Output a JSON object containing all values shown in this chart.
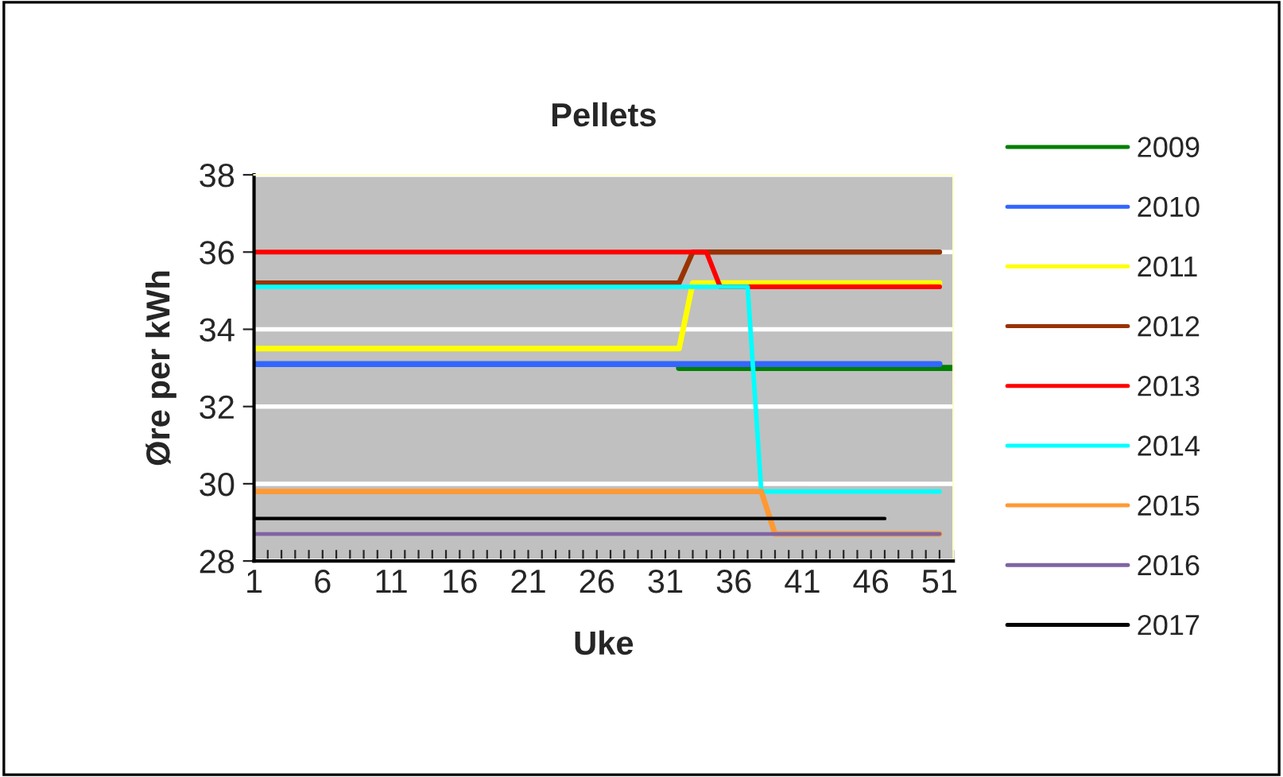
{
  "chart_data": {
    "type": "line",
    "title": "Pellets",
    "xlabel": "Uke",
    "ylabel": "Øre per kWh",
    "xlim": [
      1,
      52
    ],
    "xticks": [
      1,
      {
        "value": 2,
        "label": null
      },
      {
        "value": 3,
        "label": null
      },
      {
        "value": 4,
        "label": null
      },
      {
        "value": 5,
        "label": null
      },
      6,
      {
        "value": 7,
        "label": null
      },
      {
        "value": 8,
        "label": null
      },
      {
        "value": 9,
        "label": null
      },
      {
        "value": 10,
        "label": null
      },
      11,
      {
        "value": 12,
        "label": null
      },
      {
        "value": 13,
        "label": null
      },
      {
        "value": 14,
        "label": null
      },
      {
        "value": 15,
        "label": null
      },
      16,
      {
        "value": 17,
        "label": null
      },
      {
        "value": 18,
        "label": null
      },
      {
        "value": 19,
        "label": null
      },
      {
        "value": 20,
        "label": null
      },
      21,
      {
        "value": 22,
        "label": null
      },
      {
        "value": 23,
        "label": null
      },
      {
        "value": 24,
        "label": null
      },
      {
        "value": 25,
        "label": null
      },
      26,
      {
        "value": 27,
        "label": null
      },
      {
        "value": 28,
        "label": null
      },
      {
        "value": 29,
        "label": null
      },
      {
        "value": 30,
        "label": null
      },
      31,
      {
        "value": 32,
        "label": null
      },
      {
        "value": 33,
        "label": null
      },
      {
        "value": 34,
        "label": null
      },
      {
        "value": 35,
        "label": null
      },
      36,
      {
        "value": 37,
        "label": null
      },
      {
        "value": 38,
        "label": null
      },
      {
        "value": 39,
        "label": null
      },
      {
        "value": 40,
        "label": null
      },
      41,
      {
        "value": 42,
        "label": null
      },
      {
        "value": 43,
        "label": null
      },
      {
        "value": 44,
        "label": null
      },
      {
        "value": 45,
        "label": null
      },
      46,
      {
        "value": 47,
        "label": null
      },
      {
        "value": 48,
        "label": null
      },
      {
        "value": 49,
        "label": null
      },
      {
        "value": 50,
        "label": null
      },
      51,
      {
        "value": 52,
        "label": null
      }
    ],
    "ylim": [
      28,
      38
    ],
    "yticks": [
      28,
      30,
      32,
      34,
      36,
      38
    ],
    "grid": "y",
    "legend": "right",
    "marker": "none",
    "line_style": "solid",
    "series": [
      {
        "name": "2009",
        "color": "#008000",
        "x": [
          32,
          52
        ],
        "values": [
          33.0,
          33.0
        ]
      },
      {
        "name": "2010",
        "color": "#3366ff",
        "x": [
          1,
          51
        ],
        "values": [
          33.1,
          33.1
        ]
      },
      {
        "name": "2011",
        "color": "#ffff00",
        "x": [
          1,
          32,
          33,
          51
        ],
        "values": [
          33.5,
          33.5,
          35.2,
          35.2
        ]
      },
      {
        "name": "2012",
        "color": "#993300",
        "x": [
          1,
          32,
          33,
          51
        ],
        "values": [
          35.2,
          35.2,
          36.0,
          36.0
        ]
      },
      {
        "name": "2013",
        "color": "#ff0000",
        "x": [
          1,
          34,
          35,
          51
        ],
        "values": [
          36.0,
          36.0,
          35.1,
          35.1
        ]
      },
      {
        "name": "2014",
        "color": "#00ffff",
        "x": [
          1,
          37,
          38,
          51
        ],
        "values": [
          35.1,
          35.1,
          29.8,
          29.8
        ]
      },
      {
        "name": "2015",
        "color": "#ff9933",
        "x": [
          1,
          38,
          39,
          51
        ],
        "values": [
          29.8,
          29.8,
          28.7,
          28.7
        ]
      },
      {
        "name": "2016",
        "color": "#8064a2",
        "x": [
          1,
          51
        ],
        "values": [
          28.7,
          28.7
        ]
      },
      {
        "name": "2017",
        "color": "#000000",
        "x": [
          1,
          47
        ],
        "values": [
          29.1,
          29.1
        ]
      }
    ]
  }
}
